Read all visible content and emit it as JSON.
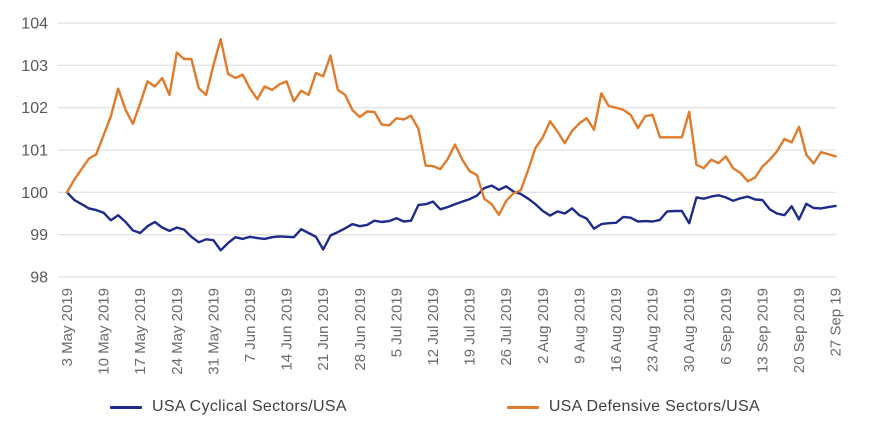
{
  "chart_data": {
    "type": "line",
    "title": "",
    "xlabel": "",
    "ylabel": "",
    "ylim": [
      98,
      104
    ],
    "yticks": [
      98,
      99,
      100,
      101,
      102,
      103,
      104
    ],
    "grid": "horizontal",
    "grid_color": "#d9d9d9",
    "axis_label_color": "#595959",
    "legend_position": "bottom",
    "x_frequency": "daily (weekdays), 3 May 2019 to 27 Sep 2019",
    "x_point_count": 106,
    "x_ticks": [
      {
        "pos": 0,
        "label": "3 May 2019"
      },
      {
        "pos": 5,
        "label": "10 May 2019"
      },
      {
        "pos": 10,
        "label": "17 May 2019"
      },
      {
        "pos": 15,
        "label": "24 May 2019"
      },
      {
        "pos": 20,
        "label": "31 May 2019"
      },
      {
        "pos": 25,
        "label": "7 Jun 2019"
      },
      {
        "pos": 30,
        "label": "14 Jun 2019"
      },
      {
        "pos": 35,
        "label": "21 Jun 2019"
      },
      {
        "pos": 40,
        "label": "28 Jun 2019"
      },
      {
        "pos": 45,
        "label": "5 Jul 2019"
      },
      {
        "pos": 50,
        "label": "12 Jul 2019"
      },
      {
        "pos": 55,
        "label": "19 Jul 2019"
      },
      {
        "pos": 60,
        "label": "26 Jul 2019"
      },
      {
        "pos": 65,
        "label": "2 Aug 2019"
      },
      {
        "pos": 70,
        "label": "9 Aug 2019"
      },
      {
        "pos": 75,
        "label": "16 Aug 2019"
      },
      {
        "pos": 80,
        "label": "23 Aug 2019"
      },
      {
        "pos": 85,
        "label": "30 Aug 2019"
      },
      {
        "pos": 90,
        "label": "6 Sep 2019"
      },
      {
        "pos": 95,
        "label": "13 Sep 2019"
      },
      {
        "pos": 100,
        "label": "20 Sep 2019"
      },
      {
        "pos": 105,
        "label": "27 Sep 19"
      }
    ],
    "series": [
      {
        "id": "cyclical",
        "name": "USA Cyclical Sectors/USA",
        "color": "#1e2a8c",
        "values": [
          100.0,
          99.82,
          99.72,
          99.62,
          99.58,
          99.52,
          99.34,
          99.46,
          99.3,
          99.1,
          99.04,
          99.2,
          99.3,
          99.17,
          99.09,
          99.17,
          99.12,
          98.95,
          98.82,
          98.89,
          98.87,
          98.63,
          98.8,
          98.94,
          98.9,
          98.95,
          98.92,
          98.9,
          98.94,
          98.96,
          98.95,
          98.94,
          99.13,
          99.04,
          98.95,
          98.65,
          98.98,
          99.06,
          99.15,
          99.25,
          99.2,
          99.23,
          99.33,
          99.3,
          99.32,
          99.39,
          99.31,
          99.33,
          99.7,
          99.72,
          99.78,
          99.6,
          99.65,
          99.72,
          99.78,
          99.84,
          99.92,
          100.1,
          100.16,
          100.06,
          100.14,
          100.02,
          99.96,
          99.85,
          99.72,
          99.56,
          99.45,
          99.55,
          99.5,
          99.62,
          99.46,
          99.38,
          99.14,
          99.25,
          99.27,
          99.28,
          99.42,
          99.4,
          99.31,
          99.32,
          99.31,
          99.35,
          99.55,
          99.56,
          99.56,
          99.27,
          99.88,
          99.85,
          99.9,
          99.93,
          99.88,
          99.8,
          99.86,
          99.9,
          99.83,
          99.82,
          99.6,
          99.5,
          99.46,
          99.67,
          99.36,
          99.73,
          99.63,
          99.62,
          99.65,
          99.68
        ]
      },
      {
        "id": "defensive",
        "name": "USA Defensive Sectors/USA",
        "color": "#e07b2c",
        "values": [
          100.0,
          100.3,
          100.55,
          100.8,
          100.9,
          101.35,
          101.8,
          102.45,
          101.95,
          101.62,
          102.1,
          102.62,
          102.5,
          102.7,
          102.3,
          103.3,
          103.15,
          103.15,
          102.46,
          102.3,
          103.0,
          103.62,
          102.8,
          102.7,
          102.78,
          102.45,
          102.2,
          102.5,
          102.42,
          102.55,
          102.62,
          102.15,
          102.4,
          102.3,
          102.82,
          102.74,
          103.23,
          102.42,
          102.3,
          101.94,
          101.78,
          101.91,
          101.9,
          101.6,
          101.58,
          101.75,
          101.72,
          101.81,
          101.5,
          100.63,
          100.62,
          100.55,
          100.78,
          101.13,
          100.77,
          100.5,
          100.41,
          99.85,
          99.72,
          99.47,
          99.8,
          99.98,
          100.05,
          100.53,
          101.05,
          101.3,
          101.68,
          101.44,
          101.16,
          101.45,
          101.63,
          101.75,
          101.48,
          102.34,
          102.04,
          102.0,
          101.95,
          101.83,
          101.52,
          101.8,
          101.83,
          101.3,
          101.3,
          101.3,
          101.3,
          101.9,
          100.65,
          100.57,
          100.77,
          100.69,
          100.85,
          100.57,
          100.46,
          100.26,
          100.35,
          100.61,
          100.77,
          100.97,
          101.26,
          101.18,
          101.55,
          100.89,
          100.68,
          100.95,
          100.9,
          100.85
        ]
      }
    ]
  },
  "legend": {
    "items": [
      {
        "label": "USA Cyclical Sectors/USA"
      },
      {
        "label": "USA Defensive Sectors/USA"
      }
    ]
  }
}
